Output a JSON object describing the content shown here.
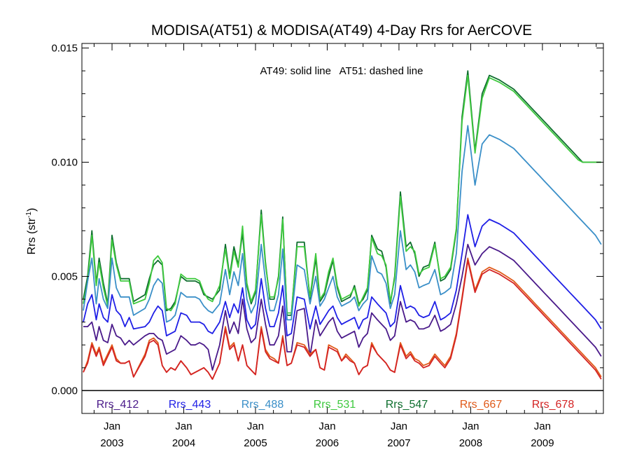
{
  "chart_data": {
    "type": "line",
    "title": "MODISA(AT51) & MODISA(AT49) 4-Day Rrs for AerCOVE",
    "annotation": "AT49: solid line   AT51: dashed line",
    "ylabel": "Rrs (str",
    "ylabel_sup": "-1",
    "ylabel_end": ")",
    "ylim": [
      -0.001,
      0.0152
    ],
    "xlim": [
      2002.58,
      2009.85
    ],
    "yticks": [
      {
        "value": 0.0,
        "label": "0.000"
      },
      {
        "value": 0.005,
        "label": "0.005"
      },
      {
        "value": 0.01,
        "label": "0.010"
      },
      {
        "value": 0.015,
        "label": "0.015"
      }
    ],
    "xticks": [
      {
        "value": 2003.0,
        "month": "Jan",
        "year": "2003"
      },
      {
        "value": 2004.0,
        "month": "Jan",
        "year": "2004"
      },
      {
        "value": 2005.0,
        "month": "Jan",
        "year": "2005"
      },
      {
        "value": 2006.0,
        "month": "Jan",
        "year": "2006"
      },
      {
        "value": 2007.0,
        "month": "Jan",
        "year": "2007"
      },
      {
        "value": 2008.0,
        "month": "Jan",
        "year": "2008"
      },
      {
        "value": 2009.0,
        "month": "Jan",
        "year": "2009"
      }
    ],
    "zero_line": 0.0,
    "x": [
      2002.6,
      2002.66,
      2002.72,
      2002.78,
      2002.82,
      2002.88,
      2002.94,
      2003.0,
      2003.06,
      2003.12,
      2003.18,
      2003.24,
      2003.3,
      2003.46,
      2003.52,
      2003.58,
      2003.64,
      2003.7,
      2003.76,
      2003.82,
      2003.88,
      2003.96,
      2004.04,
      2004.1,
      2004.16,
      2004.22,
      2004.28,
      2004.34,
      2004.4,
      2004.5,
      2004.58,
      2004.64,
      2004.7,
      2004.76,
      2004.82,
      2004.88,
      2004.94,
      2005.0,
      2005.08,
      2005.14,
      2005.2,
      2005.26,
      2005.32,
      2005.38,
      2005.44,
      2005.5,
      2005.58,
      2005.68,
      2005.76,
      2005.84,
      2005.9,
      2005.96,
      2006.02,
      2006.08,
      2006.14,
      2006.2,
      2006.26,
      2006.32,
      2006.38,
      2006.44,
      2006.5,
      2006.56,
      2006.62,
      2006.7,
      2006.76,
      2006.82,
      2006.88,
      2006.94,
      2007.02,
      2007.1,
      2007.16,
      2007.22,
      2007.28,
      2007.34,
      2007.42,
      2007.5,
      2007.58,
      2007.64,
      2007.72,
      2007.8,
      2007.88,
      2007.96,
      2008.06,
      2008.16,
      2008.26,
      2008.4,
      2008.5,
      2008.6,
      2008.66,
      2008.72,
      2008.78,
      2008.84,
      2008.9,
      2008.96,
      2009.02,
      2009.08,
      2009.14,
      2009.2,
      2009.26,
      2009.32,
      2009.38,
      2009.44,
      2009.5,
      2009.56,
      2009.62,
      2009.68,
      2009.74,
      2009.78,
      2009.82
    ],
    "series": [
      {
        "name": "Rrs_547",
        "color": "#0e6e2e",
        "dash": false,
        "values": [
          0.004,
          0.005,
          0.007,
          0.0047,
          0.0058,
          0.0047,
          0.0038,
          0.0068,
          0.0056,
          0.0049,
          0.0049,
          0.0049,
          0.0039,
          0.0042,
          0.0049,
          0.0055,
          0.0057,
          0.0055,
          0.0035,
          0.0036,
          0.0039,
          0.005,
          0.0048,
          0.0048,
          0.0048,
          0.0047,
          0.0042,
          0.0041,
          0.004,
          0.0044,
          0.0064,
          0.005,
          0.0063,
          0.0055,
          0.0069,
          0.0046,
          0.0038,
          0.0043,
          0.0079,
          0.0056,
          0.004,
          0.004,
          0.005,
          0.0076,
          0.0033,
          0.0033,
          0.0065,
          0.0065,
          0.004,
          0.0058,
          0.0039,
          0.0042,
          0.005,
          0.0057,
          0.0045,
          0.0039,
          0.004,
          0.0041,
          0.0046,
          0.0038,
          0.004,
          0.0044,
          0.0068,
          0.0062,
          0.0061,
          0.0054,
          0.0038,
          0.005,
          0.0087,
          0.0063,
          0.0065,
          0.006,
          0.005,
          0.0054,
          0.0055,
          0.0065,
          0.0048,
          0.0049,
          0.0053,
          0.007,
          0.012,
          0.014,
          0.0105,
          0.013,
          0.0138,
          0.0136,
          0.0134,
          0.0132,
          0.013,
          0.0128,
          0.0126,
          0.0124,
          0.0122,
          0.012,
          0.0118,
          0.0116,
          0.0114,
          0.0112,
          0.011,
          0.0108,
          0.0106,
          0.0104,
          0.0102,
          0.01,
          0.01,
          0.01,
          0.01,
          0.01,
          0.01
        ]
      },
      {
        "name": "Rrs_531",
        "color": "#3ec93e",
        "dash": false,
        "values": [
          0.0038,
          0.0048,
          0.0068,
          0.0046,
          0.0056,
          0.0045,
          0.0037,
          0.0066,
          0.0055,
          0.0048,
          0.0048,
          0.0048,
          0.0038,
          0.004,
          0.0047,
          0.0057,
          0.0059,
          0.0056,
          0.0036,
          0.0035,
          0.0038,
          0.0051,
          0.0049,
          0.0049,
          0.0049,
          0.0048,
          0.0043,
          0.004,
          0.0039,
          0.0046,
          0.0062,
          0.0049,
          0.0061,
          0.0054,
          0.0072,
          0.0047,
          0.0039,
          0.0044,
          0.0077,
          0.0055,
          0.0041,
          0.0041,
          0.0049,
          0.0075,
          0.0034,
          0.0034,
          0.0063,
          0.0063,
          0.0041,
          0.006,
          0.004,
          0.0043,
          0.0052,
          0.0058,
          0.0046,
          0.004,
          0.0041,
          0.0042,
          0.0045,
          0.0037,
          0.0041,
          0.0045,
          0.0067,
          0.006,
          0.0059,
          0.0055,
          0.0039,
          0.0049,
          0.0085,
          0.0061,
          0.0063,
          0.0061,
          0.0051,
          0.0053,
          0.0054,
          0.0064,
          0.0049,
          0.005,
          0.0054,
          0.0071,
          0.0118,
          0.0138,
          0.0104,
          0.0128,
          0.0137,
          0.0135,
          0.0133,
          0.0131,
          0.0129,
          0.0127,
          0.0125,
          0.0123,
          0.0121,
          0.0119,
          0.0117,
          0.0115,
          0.0113,
          0.0111,
          0.0109,
          0.0107,
          0.0105,
          0.0103,
          0.0101,
          0.01,
          0.01,
          0.01,
          0.01,
          0.01,
          0.01
        ]
      },
      {
        "name": "Rrs_488",
        "color": "#3a8fc8",
        "dash": false,
        "values": [
          0.0035,
          0.0048,
          0.0058,
          0.0038,
          0.0049,
          0.004,
          0.0036,
          0.0058,
          0.0045,
          0.0041,
          0.0041,
          0.0041,
          0.0033,
          0.0036,
          0.004,
          0.0046,
          0.0049,
          0.0047,
          0.003,
          0.0031,
          0.0033,
          0.0043,
          0.0041,
          0.0041,
          0.0041,
          0.004,
          0.0037,
          0.0035,
          0.0034,
          0.0038,
          0.0053,
          0.0042,
          0.0052,
          0.0046,
          0.006,
          0.004,
          0.0034,
          0.0038,
          0.0064,
          0.0048,
          0.0035,
          0.0035,
          0.0042,
          0.0062,
          0.0031,
          0.0031,
          0.0055,
          0.0053,
          0.0038,
          0.005,
          0.0037,
          0.004,
          0.0045,
          0.005,
          0.0041,
          0.0037,
          0.0038,
          0.0039,
          0.0041,
          0.0035,
          0.0038,
          0.004,
          0.0059,
          0.0052,
          0.0051,
          0.0047,
          0.0036,
          0.0042,
          0.007,
          0.0053,
          0.0055,
          0.0052,
          0.0045,
          0.0046,
          0.0047,
          0.0053,
          0.0042,
          0.0043,
          0.0045,
          0.006,
          0.0096,
          0.0116,
          0.009,
          0.0108,
          0.0112,
          0.011,
          0.0108,
          0.0106,
          0.0104,
          0.0102,
          0.01,
          0.0098,
          0.0096,
          0.0094,
          0.0092,
          0.009,
          0.0088,
          0.0086,
          0.0084,
          0.0082,
          0.008,
          0.0078,
          0.0076,
          0.0074,
          0.0072,
          0.007,
          0.0068,
          0.0066,
          0.0064
        ]
      },
      {
        "name": "Rrs_443",
        "color": "#1f1fe6",
        "dash": false,
        "values": [
          0.003,
          0.0038,
          0.0042,
          0.0031,
          0.0038,
          0.0032,
          0.003,
          0.0042,
          0.0035,
          0.0033,
          0.0028,
          0.0032,
          0.0027,
          0.0028,
          0.003,
          0.0034,
          0.0037,
          0.0035,
          0.0024,
          0.0025,
          0.0026,
          0.0034,
          0.0033,
          0.003,
          0.003,
          0.003,
          0.0029,
          0.0026,
          0.0025,
          0.003,
          0.0039,
          0.0032,
          0.0038,
          0.0034,
          0.0045,
          0.0031,
          0.0027,
          0.0029,
          0.0049,
          0.0036,
          0.0028,
          0.0028,
          0.0034,
          0.0046,
          0.0024,
          0.0025,
          0.0041,
          0.004,
          0.0027,
          0.0037,
          0.0029,
          0.0032,
          0.0035,
          0.0037,
          0.0032,
          0.0029,
          0.003,
          0.0031,
          0.0032,
          0.0027,
          0.0031,
          0.0032,
          0.0041,
          0.0038,
          0.0036,
          0.0034,
          0.0028,
          0.003,
          0.0046,
          0.0036,
          0.0037,
          0.0036,
          0.0033,
          0.0032,
          0.0033,
          0.0039,
          0.0031,
          0.0032,
          0.0034,
          0.0044,
          0.006,
          0.0077,
          0.0063,
          0.0072,
          0.0075,
          0.0073,
          0.0071,
          0.0069,
          0.0067,
          0.0065,
          0.0063,
          0.0061,
          0.0059,
          0.0057,
          0.0055,
          0.0053,
          0.0051,
          0.0049,
          0.0047,
          0.0045,
          0.0043,
          0.0041,
          0.0039,
          0.0037,
          0.0035,
          0.0033,
          0.0031,
          0.0029,
          0.0027
        ]
      },
      {
        "name": "Rrs_412",
        "color": "#4a1a8a",
        "dash": false,
        "values": [
          0.0028,
          0.0028,
          0.003,
          0.0022,
          0.0028,
          0.0022,
          0.0021,
          0.0029,
          0.0024,
          0.0023,
          0.002,
          0.0022,
          0.002,
          0.0024,
          0.0025,
          0.0025,
          0.0023,
          0.0022,
          0.0016,
          0.0017,
          0.0018,
          0.0024,
          0.0022,
          0.002,
          0.002,
          0.0021,
          0.002,
          0.0018,
          0.0009,
          0.002,
          0.0035,
          0.0025,
          0.003,
          0.0025,
          0.004,
          0.0027,
          0.0021,
          0.0023,
          0.004,
          0.0029,
          0.002,
          0.002,
          0.0024,
          0.0037,
          0.0017,
          0.0017,
          0.0035,
          0.0036,
          0.0015,
          0.0031,
          0.0024,
          0.0027,
          0.003,
          0.0032,
          0.0026,
          0.0023,
          0.0024,
          0.0025,
          0.0026,
          0.0019,
          0.0023,
          0.0025,
          0.0034,
          0.0031,
          0.0029,
          0.0027,
          0.0022,
          0.0024,
          0.0039,
          0.003,
          0.0031,
          0.003,
          0.0027,
          0.0027,
          0.0028,
          0.0033,
          0.0026,
          0.0027,
          0.0029,
          0.0038,
          0.005,
          0.0064,
          0.0055,
          0.006,
          0.0063,
          0.0061,
          0.0059,
          0.0057,
          0.0055,
          0.0053,
          0.0051,
          0.0049,
          0.0047,
          0.0045,
          0.0043,
          0.0041,
          0.0039,
          0.0037,
          0.0035,
          0.0033,
          0.0031,
          0.0029,
          0.0027,
          0.0025,
          0.0023,
          0.0021,
          0.0019,
          0.0017,
          0.0015
        ]
      },
      {
        "name": "Rrs_667",
        "color": "#e05a1a",
        "dash": false,
        "values": [
          0.0008,
          0.0013,
          0.0021,
          0.0016,
          0.0019,
          0.0012,
          0.0016,
          0.002,
          0.0014,
          0.0012,
          0.0012,
          0.0013,
          0.0006,
          0.0016,
          0.0022,
          0.0023,
          0.0021,
          0.0011,
          0.0008,
          0.001,
          0.0009,
          0.0013,
          0.001,
          0.0007,
          0.0008,
          0.0009,
          0.001,
          0.0008,
          0.0005,
          0.0012,
          0.0028,
          0.0019,
          0.0021,
          0.0013,
          0.002,
          0.0011,
          0.0009,
          0.0007,
          0.0028,
          0.0018,
          0.0015,
          0.0014,
          0.0012,
          0.0024,
          0.0011,
          0.0012,
          0.0021,
          0.002,
          0.0016,
          0.0018,
          0.001,
          0.0009,
          0.002,
          0.0019,
          0.0018,
          0.0013,
          0.0016,
          0.0014,
          0.0012,
          0.0007,
          0.001,
          0.0011,
          0.0021,
          0.0016,
          0.0014,
          0.0012,
          0.0009,
          0.0008,
          0.0021,
          0.0015,
          0.0017,
          0.0014,
          0.0013,
          0.0011,
          0.0012,
          0.0016,
          0.0013,
          0.0011,
          0.0015,
          0.0025,
          0.0041,
          0.0058,
          0.0044,
          0.0052,
          0.0054,
          0.0052,
          0.005,
          0.0048,
          0.0046,
          0.0044,
          0.0042,
          0.004,
          0.0038,
          0.0036,
          0.0034,
          0.0032,
          0.003,
          0.0028,
          0.0026,
          0.0024,
          0.0022,
          0.002,
          0.0018,
          0.0016,
          0.0014,
          0.0012,
          0.001,
          0.0008,
          0.0006
        ]
      },
      {
        "name": "Rrs_678",
        "color": "#d42424",
        "dash": false,
        "values": [
          0.0008,
          0.0012,
          0.002,
          0.0015,
          0.0018,
          0.0011,
          0.0015,
          0.0019,
          0.0013,
          0.0012,
          0.0012,
          0.0013,
          0.0006,
          0.0015,
          0.0021,
          0.0022,
          0.002,
          0.0011,
          0.0008,
          0.001,
          0.0009,
          0.0013,
          0.001,
          0.0007,
          0.0008,
          0.0009,
          0.001,
          0.0008,
          0.0005,
          0.0012,
          0.0027,
          0.0018,
          0.002,
          0.0013,
          0.002,
          0.0011,
          0.0009,
          0.0007,
          0.0027,
          0.0017,
          0.0014,
          0.0013,
          0.0012,
          0.0023,
          0.0011,
          0.0012,
          0.002,
          0.0019,
          0.0015,
          0.0018,
          0.001,
          0.0009,
          0.0019,
          0.0018,
          0.0017,
          0.0013,
          0.0015,
          0.0013,
          0.0012,
          0.0007,
          0.001,
          0.0011,
          0.002,
          0.0016,
          0.0014,
          0.0012,
          0.0009,
          0.0008,
          0.002,
          0.0014,
          0.0016,
          0.0013,
          0.0012,
          0.001,
          0.0011,
          0.0015,
          0.0012,
          0.001,
          0.0014,
          0.0024,
          0.004,
          0.0057,
          0.0043,
          0.0051,
          0.0053,
          0.0051,
          0.0049,
          0.0047,
          0.0045,
          0.0043,
          0.0041,
          0.0039,
          0.0037,
          0.0035,
          0.0033,
          0.0031,
          0.0029,
          0.0027,
          0.0025,
          0.0023,
          0.0021,
          0.0019,
          0.0017,
          0.0015,
          0.0013,
          0.0011,
          0.0009,
          0.0007,
          0.0005
        ]
      }
    ],
    "legend_labels": [
      {
        "name": "Rrs_412",
        "color": "#4a1a8a"
      },
      {
        "name": "Rrs_443",
        "color": "#1f1fe6"
      },
      {
        "name": "Rrs_488",
        "color": "#3a8fc8"
      },
      {
        "name": "Rrs_531",
        "color": "#3ec93e"
      },
      {
        "name": "Rrs_547",
        "color": "#0e6e2e"
      },
      {
        "name": "Rrs_667",
        "color": "#e05a1a"
      },
      {
        "name": "Rrs_678",
        "color": "#d42424"
      }
    ],
    "legend_placement": "bottom inside plot",
    "grid": false
  }
}
